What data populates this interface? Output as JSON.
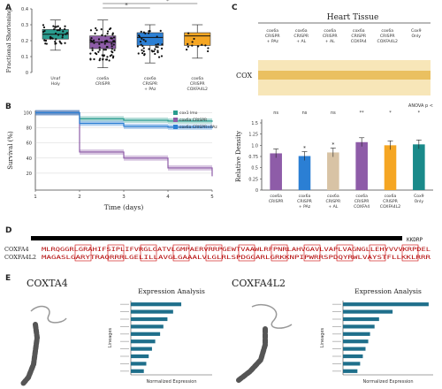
{
  "panels": {
    "A": "A",
    "B": "B",
    "C": "C",
    "D": "D",
    "E": "E"
  },
  "chart_data": [
    {
      "panel": "A",
      "type": "box",
      "ylabel": "Fractional Shortening",
      "ylim": [
        0,
        0.4
      ],
      "yticks": [
        "0",
        "0.1",
        "0.2",
        "0.3",
        "0.4"
      ],
      "significance": [
        "*",
        "*"
      ],
      "groups": [
        {
          "label": [
            "Unaf",
            "Holy"
          ],
          "color": "#2a9d8f",
          "q1": 0.21,
          "median": 0.24,
          "q3": 0.27,
          "lo": 0.14,
          "hi": 0.33
        },
        {
          "label": [
            "cox6a",
            "CRISPR"
          ],
          "color": "#8e5ca8",
          "q1": 0.15,
          "median": 0.19,
          "q3": 0.23,
          "lo": 0.03,
          "hi": 0.33
        },
        {
          "label": [
            "cox6a",
            "CRISPR",
            "+ PAz"
          ],
          "color": "#2b7fd4",
          "q1": 0.17,
          "median": 0.22,
          "q3": 0.25,
          "lo": 0.06,
          "hi": 0.3
        },
        {
          "label": [
            "cox6a",
            "CRISPR",
            "COXFA4L2"
          ],
          "color": "#f5a623",
          "q1": 0.17,
          "median": 0.23,
          "q3": 0.25,
          "lo": 0.09,
          "hi": 0.3
        }
      ]
    },
    {
      "panel": "B",
      "type": "line",
      "ylabel": "Survival (%)",
      "xlabel": "Time (days)",
      "ylim": [
        0,
        100
      ],
      "yticks": [
        "100",
        "80",
        "60",
        "40",
        "20"
      ],
      "xticks": [
        "1",
        "2",
        "3",
        "4",
        "5"
      ],
      "legend_position": "top-right",
      "series": [
        {
          "name": "cox1 lmo",
          "color": "#2a9d8f",
          "values": [
            100,
            92,
            90,
            89,
            88
          ]
        },
        {
          "name": "cox6a CRISPR",
          "color": "#8e5ca8",
          "values": [
            100,
            48,
            40,
            27,
            16
          ]
        },
        {
          "name": "cox6a CRISPR+PAz",
          "color": "#2b7fd4",
          "values": [
            100,
            86,
            82,
            81,
            80
          ]
        }
      ]
    },
    {
      "panel": "C",
      "type": "bar",
      "ylabel": "Relative Density",
      "ylim": [
        0,
        1.5
      ],
      "yticks": [
        "0",
        "0.25",
        "0.5",
        "0.75",
        "1.0",
        "1.25",
        "1.5"
      ],
      "anova": "ANOVA p <",
      "sig_row": [
        "ns",
        "ns",
        "ns",
        "**",
        "*",
        "*"
      ],
      "sig_bar": [
        "",
        "*",
        "*",
        "",
        "",
        ""
      ],
      "categories": [
        [
          "cox6a",
          "CRISPR"
        ],
        [
          "cox6a",
          "CRISPR",
          "+ PAz"
        ],
        [
          "cox6a",
          "CRISPR",
          "+ AL"
        ],
        [
          "cox6a",
          "CRISPR",
          "COXFA4"
        ],
        [
          "cox6a",
          "CRISPR",
          "COXFA4L2"
        ],
        [
          "Cox9",
          "Only"
        ]
      ],
      "values": [
        0.82,
        0.76,
        0.84,
        1.07,
        1.0,
        1.02
      ],
      "colors": [
        "#8e5ca8",
        "#2b7fd4",
        "#d8c3a5",
        "#8e5ca8",
        "#f5a623",
        "#1a8a8a"
      ]
    }
  ],
  "heart": {
    "title": "Heart Tissue",
    "lanes": [
      [
        "cox6a",
        "CRISPR",
        "+ PAz"
      ],
      [
        "cox6a",
        "CRISPR",
        "+ AL"
      ],
      [
        "cox6a",
        "CRISPR",
        "+ AL"
      ],
      [
        "cox6a",
        "CRISPR",
        "COXFA4"
      ],
      [
        "cox6a",
        "CRISPR",
        "COXFA4L2"
      ],
      [
        "Cox9",
        "Only"
      ]
    ],
    "band_label": "COX"
  },
  "alignment": {
    "top_tail": "KKDRP",
    "rows": [
      {
        "name": "COXFA4",
        "seq": "MLRQGGRLGRAHIFSIPLIFVRGLGATVLGMPAERVRRPGEWTVAAWLRFPNRLAHVGAVLVAPLVAGNGLLEHYVVVKRPDEL"
      },
      {
        "name": "COXFA4L2",
        "seq": "MAGASLGARYTRAQRRRLGELILLAVGLGAAALVLGLRLSPDGGARLGRKKNPIPWRRSPDQYRWLVAYSTFLLKKLRRR"
      }
    ]
  },
  "expression": [
    {
      "gene": "COXTA4",
      "title": "Expression Analysis",
      "xlabel": "Normalized Expression",
      "ylabel": "Lineages",
      "bar_color": "#1f6f8b",
      "values": [
        0.62,
        0.52,
        0.45,
        0.4,
        0.36,
        0.3,
        0.26,
        0.22,
        0.19,
        0.16
      ]
    },
    {
      "gene": "COXFA4L2",
      "title": "Expression Analysis",
      "xlabel": "Normalized Expression",
      "ylabel": "Lineages",
      "bar_color": "#1f6f8b",
      "values": [
        0.95,
        0.55,
        0.4,
        0.35,
        0.3,
        0.28,
        0.25,
        0.22,
        0.19,
        0.16
      ]
    }
  ]
}
